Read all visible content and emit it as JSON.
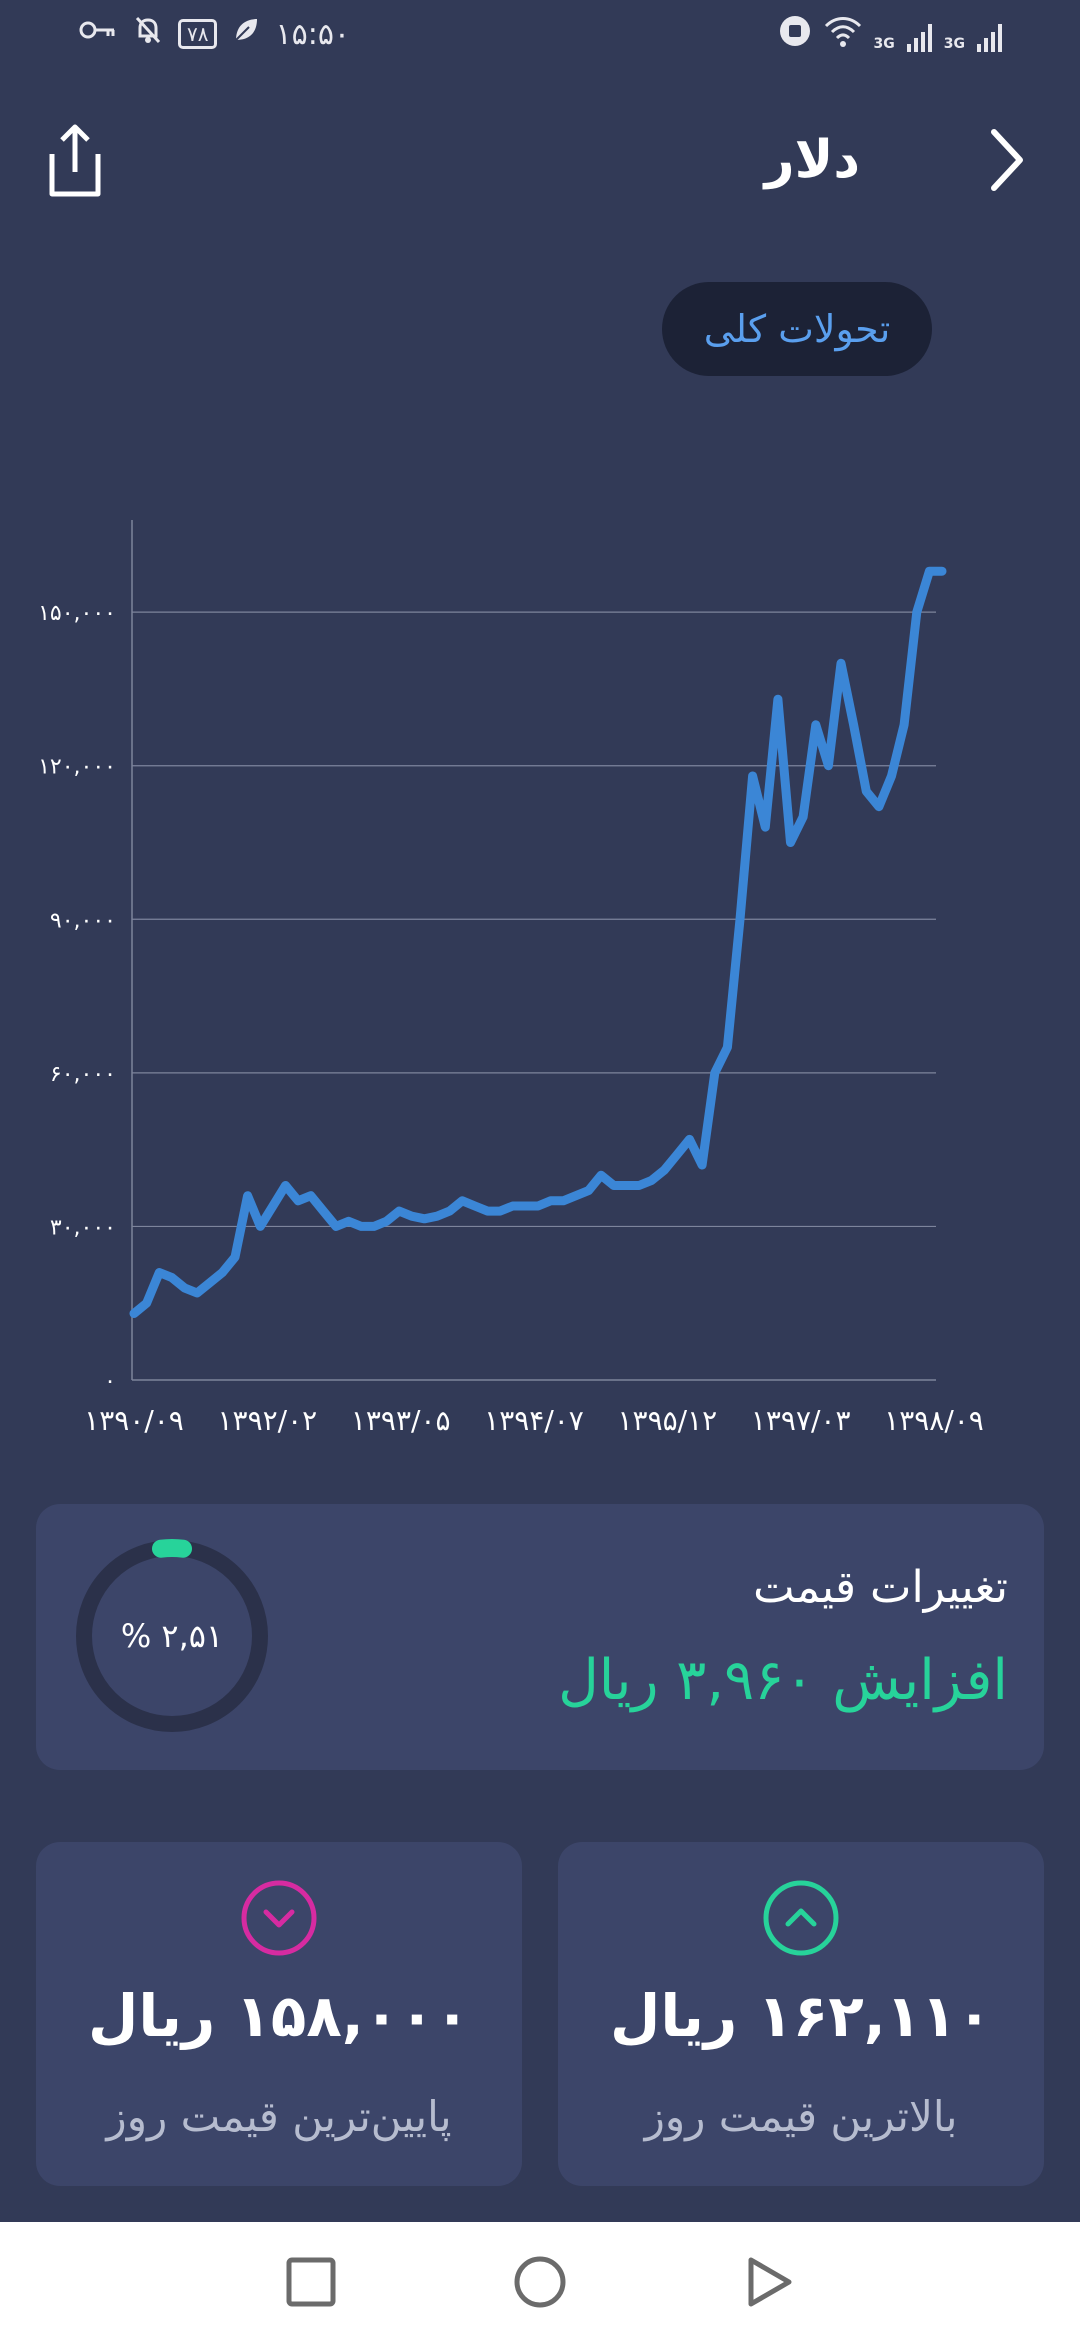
{
  "status_bar": {
    "time": "۱۵:۵۰",
    "battery": "۷۸",
    "network_1": "3G",
    "network_2": "3G"
  },
  "header": {
    "title": "دلار"
  },
  "filter_chip": {
    "label": "تحولات کلی"
  },
  "chart_data": {
    "type": "line",
    "title": "",
    "xlabel": "",
    "ylabel": "",
    "ylim": [
      0,
      168000
    ],
    "y_ticks": [
      "۰",
      "۳۰,۰۰۰",
      "۶۰,۰۰۰",
      "۹۰,۰۰۰",
      "۱۲۰,۰۰۰",
      "۱۵۰,۰۰۰"
    ],
    "y_tick_values": [
      0,
      30000,
      60000,
      90000,
      120000,
      150000
    ],
    "x_ticks": [
      "۱۳۹۰/۰۹",
      "۱۳۹۲/۰۲",
      "۱۳۹۳/۰۵",
      "۱۳۹۴/۰۷",
      "۱۳۹۵/۱۲",
      "۱۳۹۷/۰۳",
      "۱۳۹۸/۰۹"
    ],
    "grid": true,
    "series_color": "#3b86d6",
    "series": [
      {
        "values": [
          13000,
          15000,
          21000,
          20000,
          18000,
          17000,
          19000,
          21000,
          24000,
          36000,
          30000,
          34000,
          38000,
          35000,
          36000,
          33000,
          30000,
          31000,
          30000,
          30000,
          31000,
          33000,
          32000,
          31500,
          32000,
          33000,
          35000,
          34000,
          33000,
          33000,
          34000,
          34000,
          34000,
          35000,
          35000,
          36000,
          37000,
          40000,
          38000,
          38000,
          38000,
          39000,
          41000,
          44000,
          47000,
          42000,
          60000,
          65000,
          90000,
          118000,
          108000,
          133000,
          105000,
          110000,
          128000,
          120000,
          140000,
          128000,
          115000,
          112000,
          118000,
          128000,
          150000,
          158000,
          158000
        ]
      }
    ]
  },
  "price_change": {
    "title": "تغییرات قیمت",
    "value": "افزایش ۳,۹۶۰ ریال",
    "percent_label": "۲,۵۱ %",
    "percent": 2.51,
    "color": "#27d39a"
  },
  "high_card": {
    "value": "۱۶۲,۱۱۰ ریال",
    "label": "بالاترین قیمت روز",
    "icon": "chevron-up-circle-icon",
    "color": "#27d39a"
  },
  "low_card": {
    "value": "۱۵۸,۰۰۰ ریال",
    "label": "پایین‌ترین قیمت روز",
    "icon": "chevron-down-circle-icon",
    "color": "#d62ba1"
  },
  "nav": {
    "icons": [
      "recents-square-icon",
      "home-circle-icon",
      "back-triangle-icon"
    ]
  }
}
